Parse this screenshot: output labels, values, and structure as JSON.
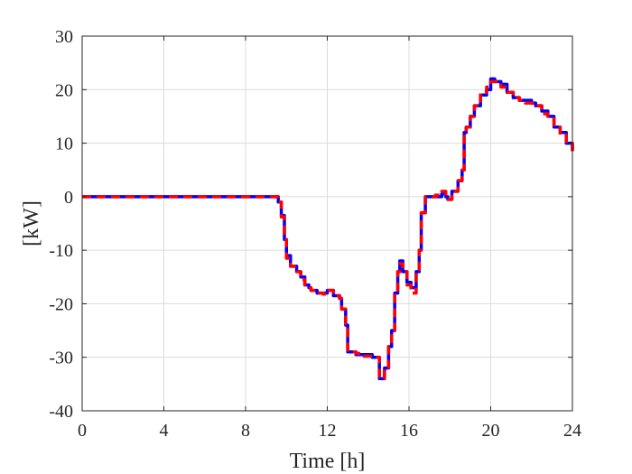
{
  "chart_data": {
    "type": "line",
    "title": "",
    "xlabel": "Time [h]",
    "ylabel": "[kW]",
    "xlim": [
      0,
      24
    ],
    "ylim": [
      -40,
      30
    ],
    "xticks": [
      0,
      4,
      8,
      12,
      16,
      20,
      24
    ],
    "yticks": [
      -40,
      -30,
      -20,
      -10,
      0,
      10,
      20,
      30
    ],
    "xtick_labels": [
      "0",
      "4",
      "8",
      "12",
      "16",
      "20",
      "24"
    ],
    "ytick_labels": [
      "-40",
      "-30",
      "-20",
      "-10",
      "0",
      "10",
      "20",
      "30"
    ],
    "grid": true,
    "legend": "none",
    "series": [
      {
        "color": "#0000ff",
        "style": "solid",
        "x": [
          0,
          9.5,
          9.6,
          9.75,
          9.9,
          10.0,
          10.2,
          10.5,
          10.7,
          10.9,
          11.1,
          11.2,
          11.5,
          11.8,
          12.0,
          12.3,
          12.6,
          12.7,
          12.9,
          13.0,
          13.4,
          13.8,
          14.2,
          14.5,
          14.55,
          14.8,
          15.0,
          15.15,
          15.3,
          15.45,
          15.55,
          15.7,
          15.9,
          16.1,
          16.35,
          16.5,
          16.6,
          16.8,
          17.0,
          17.3,
          17.6,
          17.8,
          17.9,
          18.1,
          18.4,
          18.6,
          18.7,
          18.8,
          19.0,
          19.2,
          19.5,
          19.8,
          20.0,
          20.2,
          20.5,
          20.8,
          21.1,
          21.4,
          21.7,
          22.0,
          22.2,
          22.5,
          22.8,
          23.1,
          23.4,
          23.7,
          24.0
        ],
        "y": [
          0,
          0,
          -1,
          -3.5,
          -8,
          -11,
          -13,
          -14,
          -15,
          -16.5,
          -17,
          -17.5,
          -18,
          -18,
          -17.5,
          -18.5,
          -19,
          -21,
          -24,
          -29,
          -29.5,
          -29.5,
          -30,
          -30,
          -34,
          -32,
          -28,
          -25,
          -18,
          -14,
          -12,
          -14,
          -16,
          -17,
          -14,
          -10,
          -3,
          0,
          0,
          0,
          0.5,
          0,
          -0.5,
          1,
          3,
          5,
          12,
          13,
          15,
          17,
          19,
          20,
          22,
          21.5,
          21,
          19.5,
          18.5,
          18,
          18,
          17.5,
          17,
          16,
          15,
          13,
          12,
          10,
          8.5
        ]
      },
      {
        "color": "#ff0000",
        "style": "dashed",
        "x": [
          0,
          9.5,
          9.6,
          9.75,
          9.9,
          10.0,
          10.2,
          10.5,
          10.7,
          10.9,
          11.1,
          11.2,
          11.5,
          11.8,
          12.0,
          12.3,
          12.6,
          12.7,
          12.9,
          13.0,
          13.4,
          13.8,
          14.2,
          14.5,
          14.55,
          14.8,
          15.0,
          15.15,
          15.3,
          15.45,
          15.55,
          15.7,
          15.9,
          16.1,
          16.35,
          16.5,
          16.6,
          16.8,
          17.0,
          17.3,
          17.6,
          17.8,
          17.9,
          18.1,
          18.4,
          18.6,
          18.7,
          18.8,
          19.0,
          19.2,
          19.5,
          19.8,
          20.0,
          20.2,
          20.5,
          20.8,
          21.1,
          21.4,
          21.7,
          22.0,
          22.2,
          22.5,
          22.8,
          23.1,
          23.4,
          23.7,
          24.0
        ],
        "y": [
          0,
          0,
          -1,
          -3.8,
          -8,
          -11.5,
          -13,
          -14,
          -15.5,
          -16.5,
          -17,
          -17.5,
          -18,
          -18.2,
          -17.5,
          -18.5,
          -19,
          -21,
          -24,
          -29,
          -29.3,
          -29.8,
          -30,
          -30,
          -34,
          -32.5,
          -28,
          -25,
          -18,
          -14,
          -12.5,
          -14,
          -16.5,
          -18,
          -14,
          -10,
          -3,
          0,
          0,
          0.3,
          1,
          0,
          -0.5,
          1,
          3,
          5,
          12.5,
          13,
          15,
          17,
          19.5,
          20.5,
          21.5,
          21.5,
          20.5,
          19.5,
          18.5,
          18,
          17.5,
          17.5,
          17,
          15.5,
          15,
          13,
          11.5,
          10,
          8
        ]
      }
    ]
  }
}
